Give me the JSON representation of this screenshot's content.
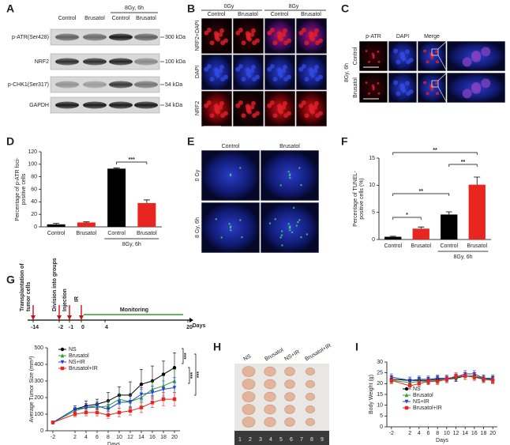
{
  "panel_labels": [
    "A",
    "B",
    "C",
    "D",
    "E",
    "F",
    "G",
    "H",
    "I"
  ],
  "blot": {
    "header": "8Gy, 6h",
    "columns": [
      "Control",
      "Brusatol",
      "Control",
      "Brusatol"
    ],
    "rows": [
      {
        "label": "p-ATR(Ser428)",
        "size": "300 kDa"
      },
      {
        "label": "NRF2",
        "size": "100 kDa"
      },
      {
        "label": "p-CHK1(Ser317)",
        "size": "54 kDa"
      },
      {
        "label": "GAPDH",
        "size": "34 kDa"
      }
    ]
  },
  "if_staining": {
    "doses": [
      "0Gy",
      "8Gy"
    ],
    "columns": [
      "Control",
      "Brusatol",
      "Control",
      "Brusatol"
    ],
    "rows": [
      "NRF2+DAPI",
      "DAPI",
      "NRF2"
    ]
  },
  "patr_staining": {
    "condition": "8Gy, 6h",
    "columns": [
      "p-ATR",
      "DAPI",
      "Merge"
    ],
    "rows": [
      "Control",
      "Brusatol"
    ]
  },
  "tunel": {
    "columns": [
      "Control",
      "Brusatol"
    ],
    "rows": [
      "0 Gy",
      "8 Gy, 6h"
    ]
  },
  "timeline": {
    "events": [
      {
        "day": "-14",
        "label": [
          "Transplantation of",
          "tumor cells"
        ]
      },
      {
        "day": "-2",
        "label": [
          "Division into groups"
        ]
      },
      {
        "day": "-1",
        "label": [
          "Injection"
        ]
      },
      {
        "day": "0",
        "label": [
          "IR"
        ]
      }
    ],
    "ticks": [
      "-14",
      "-2",
      "-1",
      "0",
      "4",
      "20"
    ],
    "phase": "Monitoring",
    "unit": "Days"
  },
  "tumor_photo": {
    "groups": [
      "NS",
      "Brusatol",
      "NS+IR",
      "Brusatol+IR"
    ],
    "ruler": [
      "1",
      "2",
      "3",
      "4",
      "5",
      "6",
      "7",
      "8",
      "9"
    ]
  },
  "chart_data": [
    {
      "type": "bar",
      "categories": [
        "Control",
        "Brusatol",
        "Control",
        "Brusatol"
      ],
      "values": [
        4,
        7,
        93,
        38
      ],
      "errors": [
        1.5,
        1,
        1,
        5
      ],
      "colors": [
        "#000000",
        "#e8251f",
        "#000000",
        "#e8251f"
      ],
      "group_label": "8Gy, 6h",
      "y_label": [
        "Percentage of p-ATR foci-",
        "positive cells"
      ],
      "ylim": [
        0,
        120
      ],
      "yticks": [
        0,
        20,
        40,
        60,
        80,
        100,
        120
      ],
      "annotations": [
        "***"
      ]
    },
    {
      "type": "bar",
      "categories": [
        "Control",
        "Brusatol",
        "Control",
        "Brusatol"
      ],
      "values": [
        0.5,
        2.0,
        4.6,
        10.1
      ],
      "errors": [
        0.1,
        0.3,
        0.5,
        1.4
      ],
      "colors": [
        "#000000",
        "#e8251f",
        "#000000",
        "#e8251f"
      ],
      "group_label": "8Gy, 6h",
      "y_label": [
        "Percentage of TUNEL-",
        "positive cells (%)"
      ],
      "ylim": [
        0,
        15
      ],
      "yticks": [
        0,
        5,
        10,
        15
      ],
      "annotations": [
        "*",
        "**",
        "**",
        "**"
      ]
    },
    {
      "type": "line",
      "x": [
        -2,
        2,
        4,
        6,
        8,
        10,
        12,
        14,
        16,
        18,
        20
      ],
      "xlim": [
        -3,
        21
      ],
      "xticks": [
        -2,
        2,
        4,
        6,
        8,
        10,
        12,
        14,
        16,
        18,
        20
      ],
      "ylim": [
        0,
        500
      ],
      "yticks": [
        0,
        100,
        200,
        300,
        400,
        500
      ],
      "x_label": "Days",
      "y_label": [
        "Average Tumor Size (mm³)"
      ],
      "series": [
        {
          "name": "NS",
          "color": "#000000",
          "marker": "circle",
          "values": [
            50,
            130,
            150,
            160,
            180,
            215,
            215,
            280,
            300,
            340,
            380
          ],
          "errors": [
            5,
            20,
            30,
            30,
            50,
            50,
            80,
            90,
            90,
            80,
            90
          ]
        },
        {
          "name": "Brusatol",
          "color": "#2ca02c",
          "marker": "triangle",
          "values": [
            50,
            120,
            140,
            140,
            150,
            190,
            175,
            200,
            250,
            270,
            300
          ],
          "errors": [
            5,
            20,
            25,
            25,
            30,
            30,
            40,
            50,
            50,
            60,
            70
          ]
        },
        {
          "name": "NS+IR",
          "color": "#1f3fd6",
          "marker": "triangle-down",
          "values": [
            50,
            130,
            140,
            150,
            130,
            170,
            175,
            220,
            230,
            250,
            260
          ],
          "errors": [
            5,
            20,
            25,
            25,
            30,
            35,
            35,
            40,
            40,
            50,
            60
          ]
        },
        {
          "name": "Brusatol+IR",
          "color": "#e8251f",
          "marker": "square",
          "values": [
            50,
            100,
            110,
            110,
            95,
            110,
            120,
            140,
            170,
            190,
            190
          ],
          "errors": [
            5,
            15,
            20,
            20,
            20,
            25,
            25,
            30,
            30,
            40,
            40
          ]
        }
      ],
      "annotations": [
        "***",
        "***",
        "***"
      ]
    },
    {
      "type": "line",
      "x": [
        -2,
        2,
        4,
        6,
        8,
        10,
        12,
        14,
        16,
        18,
        20
      ],
      "xlim": [
        -3,
        21
      ],
      "xticks": [
        -2,
        2,
        4,
        6,
        8,
        10,
        12,
        14,
        16,
        18,
        20
      ],
      "ylim": [
        0,
        30
      ],
      "yticks": [
        0,
        5,
        10,
        15,
        20,
        25,
        30
      ],
      "x_label": "Days",
      "y_label": [
        "Body Weight (g)"
      ],
      "series": [
        {
          "name": "NS",
          "color": "#000000",
          "marker": "circle",
          "values": [
            22,
            21.5,
            21.5,
            21.5,
            22,
            22,
            22.5,
            23.5,
            23.5,
            22,
            21.8
          ],
          "errors": [
            1.5,
            1.5,
            1.5,
            1.5,
            1.5,
            1.5,
            1.5,
            1.5,
            1.5,
            1.5,
            1.5
          ]
        },
        {
          "name": "Brusatol",
          "color": "#2ca02c",
          "marker": "triangle",
          "values": [
            21.5,
            20.5,
            21,
            21,
            21.5,
            22,
            23,
            23.5,
            23.5,
            22.5,
            22
          ],
          "errors": [
            1.5,
            1.5,
            1.5,
            1.5,
            1.5,
            1.5,
            1.5,
            1.5,
            1.5,
            1.5,
            1.5
          ]
        },
        {
          "name": "NS+IR",
          "color": "#1f3fd6",
          "marker": "triangle-down",
          "values": [
            23,
            21.5,
            22,
            22,
            22.5,
            22.5,
            23,
            24.5,
            24.5,
            22.5,
            22.5
          ],
          "errors": [
            1.5,
            1.5,
            1.5,
            1.5,
            1.5,
            1.5,
            1.5,
            1.5,
            1.5,
            1.5,
            1.5
          ]
        },
        {
          "name": "Brusatol+IR",
          "color": "#e8251f",
          "marker": "square",
          "values": [
            21.5,
            19,
            20,
            21,
            21,
            22,
            23.5,
            23.5,
            23,
            22,
            21.5
          ],
          "errors": [
            1.5,
            1.5,
            1.5,
            1.5,
            1.5,
            1.5,
            1.5,
            1.5,
            1.5,
            1.5,
            1.5
          ]
        }
      ]
    }
  ]
}
